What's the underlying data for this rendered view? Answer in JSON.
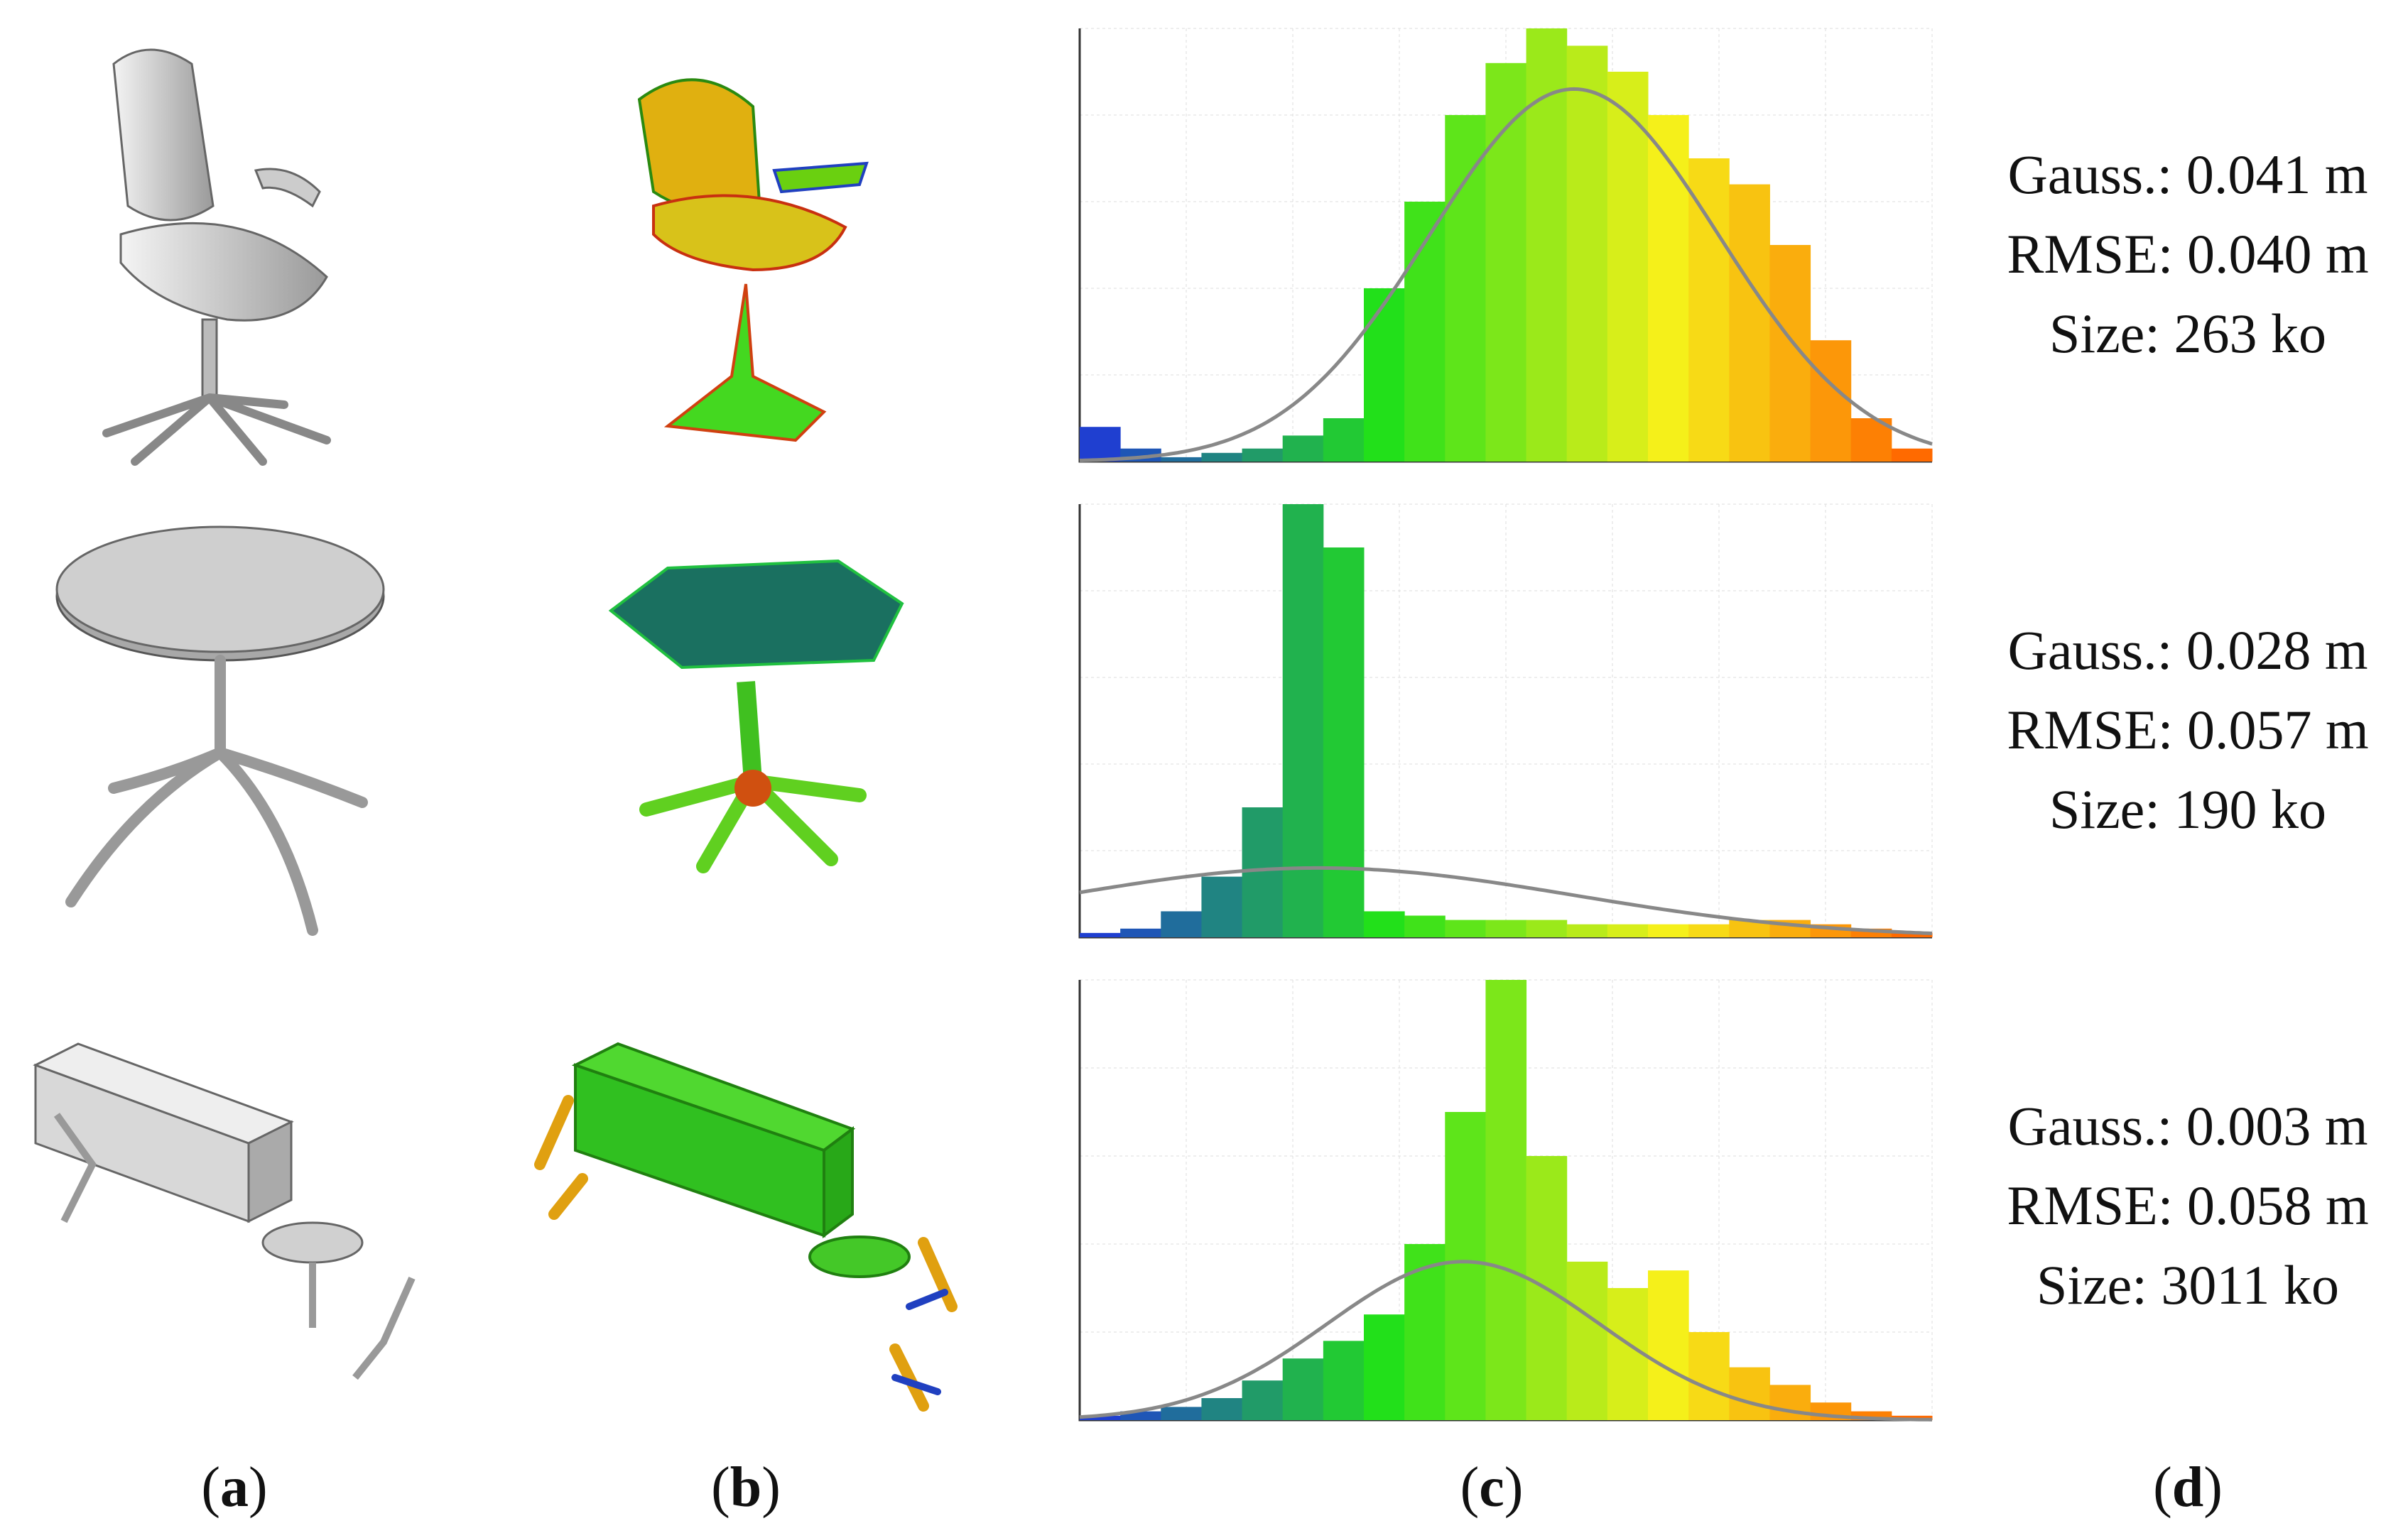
{
  "figure": {
    "captions": {
      "a": "a",
      "b": "b",
      "c": "c",
      "d": "d"
    },
    "rows": [
      {
        "object": "office chair",
        "stats": {
          "gauss": "Gauss.: 0.041 m",
          "rmse": "RMSE: 0.040 m",
          "size": "Size: 263 ko"
        }
      },
      {
        "object": "round table",
        "stats": {
          "gauss": "Gauss.: 0.028 m",
          "rmse": "RMSE: 0.057 m",
          "size": "Size: 190 ko"
        }
      },
      {
        "object": "office scene with desk, table and chairs",
        "stats": {
          "gauss": "Gauss.: 0.003 m",
          "rmse": "RMSE: 0.058 m",
          "size": "Size: 3011 ko"
        }
      }
    ]
  },
  "colors": {
    "fit_curve": "#888888",
    "blue": "#1f3fd0",
    "green": "#22e01a",
    "yellow": "#f5f01a",
    "orange": "#ff6a00"
  },
  "chart_data": [
    {
      "type": "bar",
      "title": "",
      "xlabel": "",
      "ylabel": "",
      "grid": true,
      "x": [
        0.0,
        0.05,
        0.1,
        0.15,
        0.2,
        0.25,
        0.3,
        0.35,
        0.4,
        0.45,
        0.5,
        0.55,
        0.6,
        0.65,
        0.7,
        0.75,
        0.8,
        0.85,
        0.9,
        0.95,
        1.0
      ],
      "values": [
        8,
        3,
        1,
        2,
        3,
        6,
        10,
        40,
        60,
        80,
        92,
        100,
        96,
        90,
        80,
        70,
        64,
        50,
        28,
        10,
        3
      ],
      "fit": {
        "mean": 0.58,
        "std": 0.17,
        "peak": 86
      }
    },
    {
      "type": "bar",
      "title": "",
      "xlabel": "",
      "ylabel": "",
      "grid": true,
      "x": [
        0.0,
        0.05,
        0.1,
        0.15,
        0.2,
        0.25,
        0.3,
        0.35,
        0.4,
        0.45,
        0.5,
        0.55,
        0.6,
        0.65,
        0.7,
        0.75,
        0.8,
        0.85,
        0.9,
        0.95,
        1.0
      ],
      "values": [
        1,
        2,
        6,
        14,
        30,
        100,
        90,
        6,
        5,
        4,
        4,
        4,
        3,
        3,
        3,
        3,
        4,
        4,
        3,
        2,
        1
      ],
      "fit": {
        "mean": 0.28,
        "std": 0.3,
        "peak": 16
      }
    },
    {
      "type": "bar",
      "title": "",
      "xlabel": "",
      "ylabel": "",
      "grid": true,
      "x": [
        0.0,
        0.05,
        0.1,
        0.15,
        0.2,
        0.25,
        0.3,
        0.35,
        0.4,
        0.45,
        0.5,
        0.55,
        0.6,
        0.65,
        0.7,
        0.75,
        0.8,
        0.85,
        0.9,
        0.95,
        1.0
      ],
      "values": [
        1,
        2,
        3,
        5,
        9,
        14,
        18,
        24,
        40,
        70,
        100,
        60,
        36,
        30,
        34,
        20,
        12,
        8,
        4,
        2,
        1
      ],
      "fit": {
        "mean": 0.45,
        "std": 0.16,
        "peak": 36
      }
    }
  ]
}
